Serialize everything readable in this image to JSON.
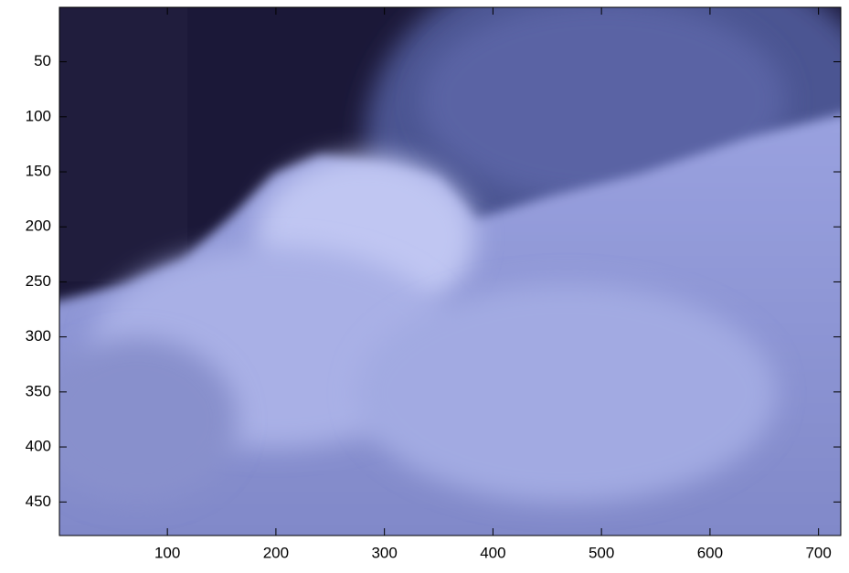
{
  "chart_data": {
    "type": "image",
    "xlim": [
      0.5,
      720.5
    ],
    "ylim": [
      0.5,
      480.5
    ],
    "y_reversed": true,
    "xticks": [
      100,
      200,
      300,
      400,
      500,
      600,
      700
    ],
    "yticks": [
      50,
      100,
      150,
      200,
      250,
      300,
      350,
      400,
      450
    ]
  }
}
